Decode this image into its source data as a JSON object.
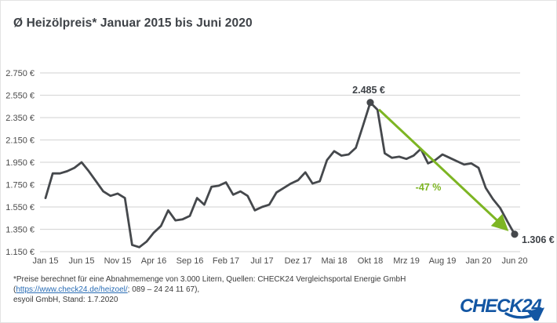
{
  "title": "Ø Heizölpreis* Januar 2015 bis Juni 2020",
  "chart_data": {
    "type": "line",
    "title": "Ø Heizölpreis* Januar 2015 bis Juni 2020",
    "unit": "€",
    "ylim": [
      1.15,
      2.75
    ],
    "y_tick_step": 0.2,
    "y_ticks": [
      {
        "value": 2.75,
        "label": "2.750 €"
      },
      {
        "value": 2.55,
        "label": "2.550 €"
      },
      {
        "value": 2.35,
        "label": "2.350 €"
      },
      {
        "value": 2.15,
        "label": "2.150 €"
      },
      {
        "value": 1.95,
        "label": "1.950 €"
      },
      {
        "value": 1.75,
        "label": "1.750 €"
      },
      {
        "value": 1.55,
        "label": "1.550 €"
      },
      {
        "value": 1.35,
        "label": "1.350 €"
      },
      {
        "value": 1.15,
        "label": "1.150 €"
      }
    ],
    "x_ticks": [
      {
        "index": 0,
        "label": "Jan 15"
      },
      {
        "index": 5,
        "label": "Jun 15"
      },
      {
        "index": 10,
        "label": "Nov 15"
      },
      {
        "index": 15,
        "label": "Apr 16"
      },
      {
        "index": 20,
        "label": "Sep 16"
      },
      {
        "index": 25,
        "label": "Feb 17"
      },
      {
        "index": 30,
        "label": "Jul 17"
      },
      {
        "index": 35,
        "label": "Dez 17"
      },
      {
        "index": 40,
        "label": "Mai 18"
      },
      {
        "index": 45,
        "label": "Okt 18"
      },
      {
        "index": 50,
        "label": "Mrz 19"
      },
      {
        "index": 55,
        "label": "Aug 19"
      },
      {
        "index": 60,
        "label": "Jan 20"
      },
      {
        "index": 65,
        "label": "Jun 20"
      }
    ],
    "categories": [
      "Jan 15",
      "Feb 15",
      "Mrz 15",
      "Apr 15",
      "Mai 15",
      "Jun 15",
      "Jul 15",
      "Aug 15",
      "Sep 15",
      "Okt 15",
      "Nov 15",
      "Dez 15",
      "Jan 16",
      "Feb 16",
      "Mrz 16",
      "Apr 16",
      "Mai 16",
      "Jun 16",
      "Jul 16",
      "Aug 16",
      "Sep 16",
      "Okt 16",
      "Nov 16",
      "Dez 16",
      "Jan 17",
      "Feb 17",
      "Mrz 17",
      "Apr 17",
      "Mai 17",
      "Jun 17",
      "Jul 17",
      "Aug 17",
      "Sep 17",
      "Okt 17",
      "Nov 17",
      "Dez 17",
      "Jan 18",
      "Feb 18",
      "Mrz 18",
      "Apr 18",
      "Mai 18",
      "Jun 18",
      "Jul 18",
      "Aug 18",
      "Sep 18",
      "Okt 18",
      "Nov 18",
      "Dez 18",
      "Jan 19",
      "Feb 19",
      "Mrz 19",
      "Apr 19",
      "Mai 19",
      "Jun 19",
      "Jul 19",
      "Aug 19",
      "Sep 19",
      "Okt 19",
      "Nov 19",
      "Dez 19",
      "Jan 20",
      "Feb 20",
      "Mrz 20",
      "Apr 20",
      "Mai 20",
      "Jun 20"
    ],
    "values": [
      1.63,
      1.85,
      1.85,
      1.87,
      1.9,
      1.95,
      1.87,
      1.78,
      1.69,
      1.65,
      1.67,
      1.63,
      1.21,
      1.19,
      1.24,
      1.32,
      1.38,
      1.52,
      1.43,
      1.44,
      1.47,
      1.63,
      1.57,
      1.73,
      1.74,
      1.77,
      1.66,
      1.69,
      1.65,
      1.52,
      1.55,
      1.57,
      1.68,
      1.72,
      1.76,
      1.79,
      1.86,
      1.76,
      1.78,
      1.97,
      2.05,
      2.01,
      2.02,
      2.08,
      2.28,
      2.485,
      2.42,
      2.03,
      1.99,
      2.0,
      1.98,
      2.01,
      2.07,
      1.94,
      1.97,
      2.02,
      1.99,
      1.96,
      1.93,
      1.94,
      1.9,
      1.72,
      1.62,
      1.54,
      1.42,
      1.306
    ],
    "annotations": {
      "peak": {
        "index": 45,
        "value": 2.485,
        "label": "2.485 €",
        "month": "Okt 18"
      },
      "end": {
        "index": 65,
        "value": 1.306,
        "label": "1.306 €",
        "month": "Jun 20"
      },
      "change": {
        "label": "-47 %"
      }
    },
    "legend": "none",
    "grid": "horizontal",
    "colors": {
      "line": "#45484c",
      "marker": "#45484c",
      "arrow": "#7db523",
      "grid": "#dadada",
      "tick_text": "#4b4b4b",
      "annotation_text": "#3e4247"
    }
  },
  "footer": {
    "line1_before_link": "*Preise berechnet für eine Abnahmemenge von 3.000 Litern, Quellen: CHECK24 Vergleichsportal Energie GmbH (",
    "link_text": "https://www.check24.de/heizoel/",
    "line1_after_link": "; 089 – 24 24 11 67),",
    "line2": "esyoil GmbH, Stand: 1.7.2020"
  },
  "logo": {
    "text": "CHECK24",
    "color": "#1356a3"
  }
}
